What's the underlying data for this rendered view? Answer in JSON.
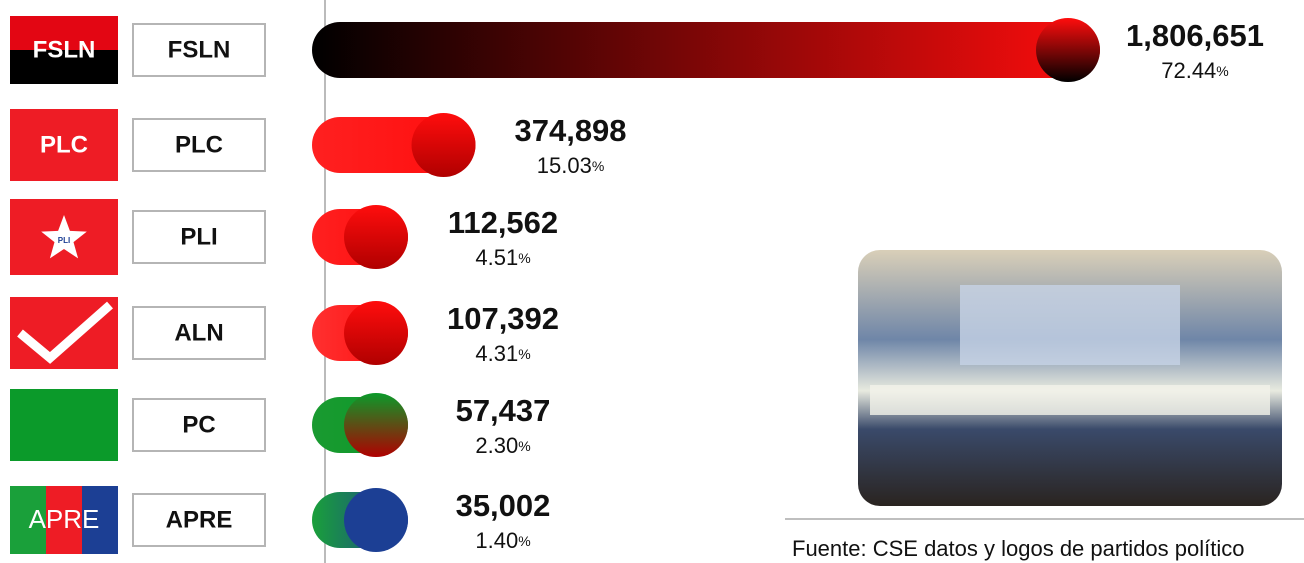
{
  "chart_data": {
    "type": "bar",
    "orientation": "horizontal",
    "categories": [
      "FSLN",
      "PLC",
      "PLI",
      "ALN",
      "PC",
      "APRE"
    ],
    "logo_labels": [
      "FSLN",
      "PLC",
      "PLI",
      null,
      null,
      "APRE"
    ],
    "values": [
      1806651,
      374898,
      112562,
      107392,
      57437,
      35002
    ],
    "value_labels": [
      "1,806,651",
      "374,898",
      "112,562",
      "107,392",
      "57,437",
      "35,002"
    ],
    "percents": [
      72.44,
      15.03,
      4.51,
      4.31,
      2.3,
      1.4
    ],
    "percent_labels": [
      "72.44",
      "15.03",
      "4.51",
      "4.31",
      "2.30",
      "1.40"
    ],
    "percent_unit": "%",
    "xlim": [
      0,
      1806651
    ],
    "colors": [
      "#ff0d0d",
      "#ff0d0d",
      "#ff0d0d",
      "#ff0d0d",
      "#0b9a2a",
      "#1c3f94"
    ],
    "gradient_from": [
      "#000000",
      "#ff2020",
      "#ff2020",
      "#ff3030",
      "#1a9a30",
      "#1aa03a"
    ],
    "source": "Fuente: CSE datos y logos de partidos político"
  }
}
